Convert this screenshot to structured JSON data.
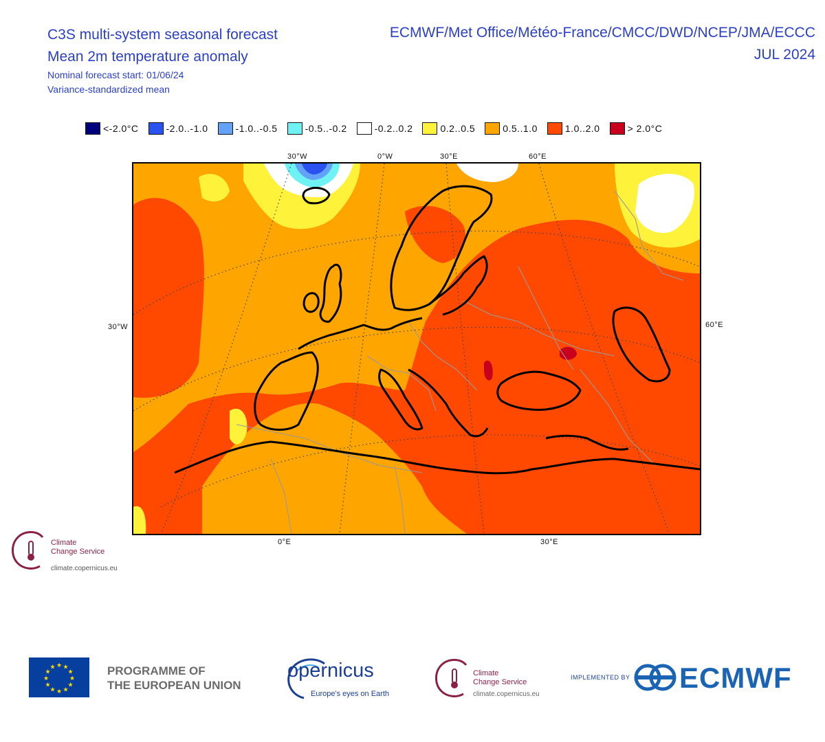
{
  "header": {
    "title_line1": "C3S multi-system seasonal forecast",
    "title_line2": "Mean 2m temperature anomaly",
    "subtitle_line1": "Nominal forecast start: 01/06/24",
    "subtitle_line2": "Variance-standardized mean",
    "systems": "ECMWF/Met Office/Météo-France/CMCC/DWD/NCEP/JMA/ECCC",
    "month": "JUL 2024"
  },
  "legend": [
    {
      "label": "<-2.0°C",
      "color": "#00007f"
    },
    {
      "label": "-2.0..-1.0",
      "color": "#2a52f0"
    },
    {
      "label": "-1.0..-0.5",
      "color": "#64a2f8"
    },
    {
      "label": "-0.5..-0.2",
      "color": "#6ef2f4"
    },
    {
      "label": "-0.2..0.2",
      "color": "#ffffff"
    },
    {
      "label": "0.2..0.5",
      "color": "#fff23a"
    },
    {
      "label": "0.5..1.0",
      "color": "#ffa500"
    },
    {
      "label": "1.0..2.0",
      "color": "#ff4800"
    },
    {
      "label": "> 2.0°C",
      "color": "#c8001e"
    }
  ],
  "map": {
    "top_lon_labels": [
      "30°W",
      "0°W",
      "30°E",
      "60°E"
    ],
    "left_lat_label": "30°W",
    "right_lat_label": "60°E",
    "bottom_lon_labels": [
      "0°E",
      "30°E"
    ],
    "colors": {
      "warm_strong": "#ff4800",
      "warm": "#ffa500",
      "mild": "#fff23a",
      "neutral": "#ffffff",
      "cool_light": "#6ef2f4",
      "cool": "#64a2f8",
      "cold": "#2a52f0",
      "hot": "#c8001e",
      "coast": "#000000",
      "borders": "#9a9a9a",
      "grid": "#444444"
    }
  },
  "c3s_small": {
    "line1": "Climate",
    "line2": "Change Service",
    "url": "climate.copernicus.eu"
  },
  "footer": {
    "eu_text_line1": "PROGRAMME OF",
    "eu_text_line2": "THE EUROPEAN UNION",
    "copernicus_word": "opernicus",
    "copernicus_tagline": "Europe's eyes on Earth",
    "c3s_line1": "Climate",
    "c3s_line2": "Change Service",
    "c3s_url": "climate.copernicus.eu",
    "implemented_by": "IMPLEMENTED BY",
    "ecmwf_word": "ECMWF"
  }
}
